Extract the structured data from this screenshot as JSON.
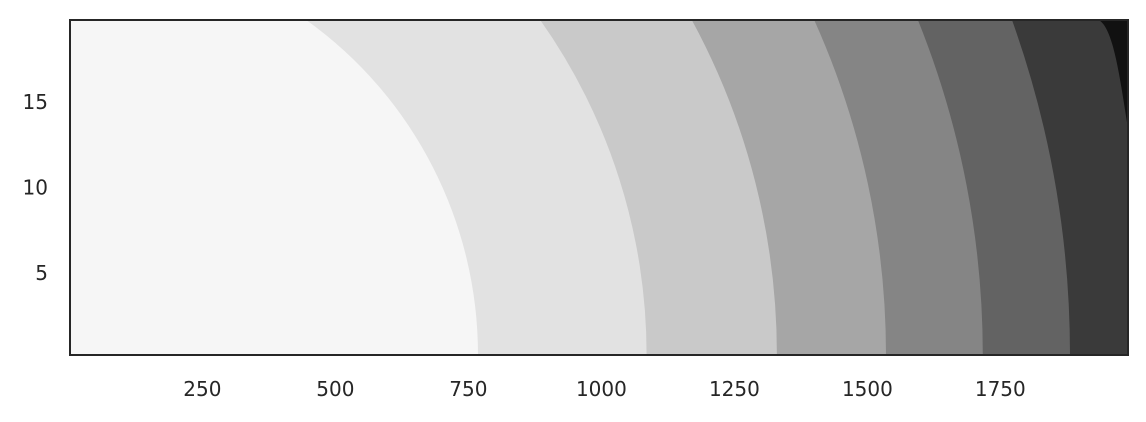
{
  "chart_data": {
    "type": "heatmap",
    "subtype": "filled-contour",
    "title": "",
    "xlabel": "",
    "ylabel": "",
    "xlim": [
      1,
      1990
    ],
    "ylim": [
      0.2,
      19.8
    ],
    "xticks": [
      250,
      500,
      750,
      1000,
      1250,
      1500,
      1750
    ],
    "yticks": [
      5,
      10,
      15
    ],
    "colormap": "Greys",
    "grid": false,
    "legend": "none",
    "level_colors": [
      "#f6f6f6",
      "#e2e2e2",
      "#c9c9c9",
      "#a6a6a6",
      "#858585",
      "#636363",
      "#3a3a3a",
      "#111111"
    ],
    "boundaries": [
      {
        "x_at_y_min": 768,
        "x_at_y_max": 445
      },
      {
        "x_at_y_min": 1085,
        "x_at_y_max": 885
      },
      {
        "x_at_y_min": 1330,
        "x_at_y_max": 1170
      },
      {
        "x_at_y_min": 1535,
        "x_at_y_max": 1400
      },
      {
        "x_at_y_min": 1717,
        "x_at_y_max": 1595
      },
      {
        "x_at_y_min": 1881,
        "x_at_y_max": 1772
      },
      {
        "x_at_y_max": 1935,
        "exits_right_at_y": 13.5
      }
    ]
  }
}
